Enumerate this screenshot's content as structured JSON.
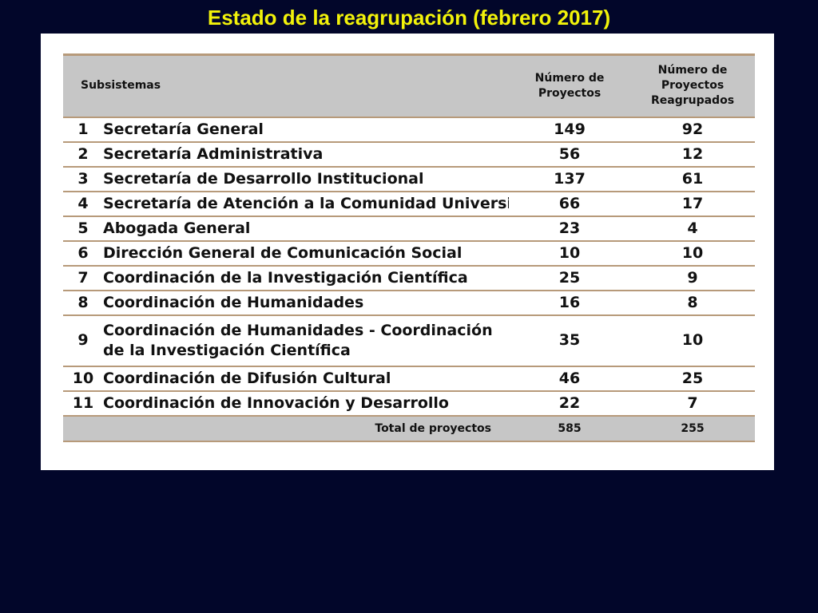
{
  "title": "Estado de la reagrupación (febrero 2017)",
  "table": {
    "headers": {
      "subsistemas": "Subsistemas",
      "proyectos_line1": "Número de",
      "proyectos_line2": "Proyectos",
      "reagrupados_line1": "Número de",
      "reagrupados_line2": "Proyectos",
      "reagrupados_line3": "Reagrupados"
    },
    "rows": [
      {
        "num": "1",
        "name": "Secretaría General",
        "proyectos": "149",
        "reagrupados": "92"
      },
      {
        "num": "2",
        "name": "Secretaría Administrativa",
        "proyectos": "56",
        "reagrupados": "12"
      },
      {
        "num": "3",
        "name": "Secretaría de Desarrollo Institucional",
        "proyectos": "137",
        "reagrupados": "61"
      },
      {
        "num": "4",
        "name": "Secretaría de Atención a la Comunidad Universita",
        "proyectos": "66",
        "reagrupados": "17"
      },
      {
        "num": "5",
        "name": "Abogada General",
        "proyectos": "23",
        "reagrupados": "4"
      },
      {
        "num": "6",
        "name": "Dirección General de Comunicación Social",
        "proyectos": "10",
        "reagrupados": "10"
      },
      {
        "num": "7",
        "name": "Coordinación de la Investigación Científica",
        "proyectos": "25",
        "reagrupados": "9"
      },
      {
        "num": "8",
        "name": "Coordinación de Humanidades",
        "proyectos": "16",
        "reagrupados": "8"
      },
      {
        "num": "9",
        "name_line1": "Coordinación de Humanidades - Coordinación",
        "name_line2": "de la Investigación Científica",
        "proyectos": "35",
        "reagrupados": "10"
      },
      {
        "num": "10",
        "name": "Coordinación de Difusión Cultural",
        "proyectos": "46",
        "reagrupados": "25"
      },
      {
        "num": "11",
        "name": "Coordinación de Innovación y Desarrollo",
        "proyectos": "22",
        "reagrupados": "7"
      }
    ],
    "total": {
      "label": "Total de proyectos",
      "proyectos": "585",
      "reagrupados": "255"
    }
  }
}
